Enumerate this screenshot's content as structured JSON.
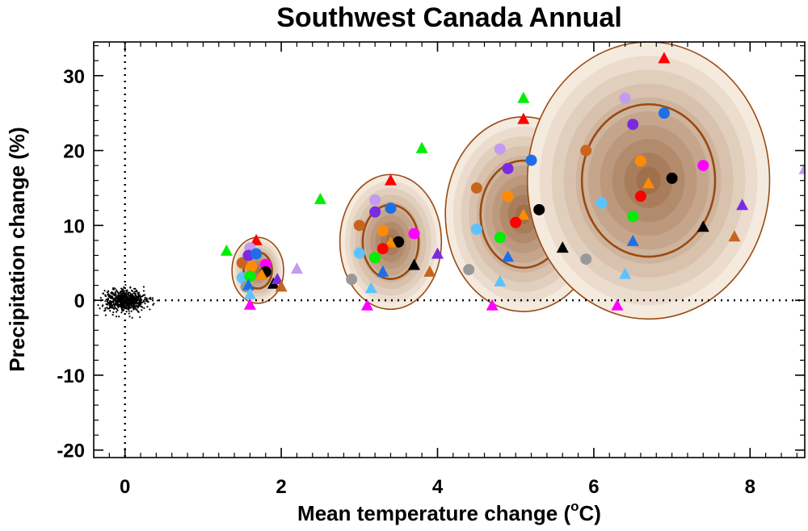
{
  "chart_data": {
    "type": "scatter",
    "title": "Southwest Canada Annual",
    "xlabel_pre": "Mean temperature change (",
    "xlabel_sup": "o",
    "xlabel_post": "C)",
    "ylabel": "Precipitation change (%)",
    "xlim": [
      -0.4,
      8.7
    ],
    "ylim": [
      -21,
      34.5
    ],
    "xticks": [
      0,
      2,
      4,
      6,
      8
    ],
    "yticks": [
      -20,
      -10,
      0,
      10,
      20,
      30
    ],
    "zero_lines": "dotted",
    "colors": {
      "brown_dark": "#9a4a12",
      "red": "#ff0000",
      "green": "#00ee00",
      "magenta": "#ff00ff",
      "orange": "#ff8c00",
      "blue": "#1e6fe6",
      "purple": "#7a2be2",
      "lavender": "#c39bef",
      "skyblue": "#5cc3ff",
      "gray": "#999999",
      "sienna": "#c8641e",
      "black": "#000000"
    },
    "control_cloud": {
      "center": [
        0,
        0
      ],
      "sd_x": 0.13,
      "sd_y": 0.7,
      "points": 700
    },
    "ellipses": [
      {
        "center": [
          1.7,
          4.0
        ],
        "rx": 0.33,
        "ry": 4.4,
        "inner_scale": 0.55
      },
      {
        "center": [
          3.4,
          7.8
        ],
        "rx": 0.65,
        "ry": 9.0,
        "inner_scale": 0.55
      },
      {
        "center": [
          5.1,
          11.5
        ],
        "rx": 1.0,
        "ry": 13.0,
        "inner_scale": 0.55
      },
      {
        "center": [
          6.7,
          16.0
        ],
        "rx": 1.55,
        "ry": 18.5,
        "inner_scale": 0.55
      }
    ],
    "markers": [
      {
        "group": 1,
        "shape": "triangle",
        "color": "green",
        "x": 1.3,
        "y": 6.6
      },
      {
        "group": 1,
        "shape": "triangle",
        "color": "red",
        "x": 1.68,
        "y": 8.0
      },
      {
        "group": 1,
        "shape": "circle",
        "color": "sienna",
        "x": 1.5,
        "y": 5.0
      },
      {
        "group": 1,
        "shape": "circle",
        "color": "lavender",
        "x": 1.6,
        "y": 7.0
      },
      {
        "group": 1,
        "shape": "circle",
        "color": "purple",
        "x": 1.58,
        "y": 6.0
      },
      {
        "group": 1,
        "shape": "circle",
        "color": "blue",
        "x": 1.68,
        "y": 6.2
      },
      {
        "group": 1,
        "shape": "circle",
        "color": "orange",
        "x": 1.62,
        "y": 4.5
      },
      {
        "group": 1,
        "shape": "circle",
        "color": "magenta",
        "x": 1.8,
        "y": 4.8
      },
      {
        "group": 1,
        "shape": "circle",
        "color": "black",
        "x": 1.8,
        "y": 3.8
      },
      {
        "group": 1,
        "shape": "circle",
        "color": "skyblue",
        "x": 1.5,
        "y": 3.0
      },
      {
        "group": 1,
        "shape": "circle",
        "color": "green",
        "x": 1.6,
        "y": 3.2
      },
      {
        "group": 1,
        "shape": "circle",
        "color": "gray",
        "x": 1.55,
        "y": 1.8
      },
      {
        "group": 1,
        "shape": "triangle",
        "color": "orange",
        "x": 1.75,
        "y": 3.4
      },
      {
        "group": 1,
        "shape": "triangle",
        "color": "blue",
        "x": 1.58,
        "y": 2.0
      },
      {
        "group": 1,
        "shape": "triangle",
        "color": "skyblue",
        "x": 1.6,
        "y": 0.8
      },
      {
        "group": 1,
        "shape": "triangle",
        "color": "magenta",
        "x": 1.6,
        "y": -0.6
      },
      {
        "group": 1,
        "shape": "triangle",
        "color": "black",
        "x": 1.9,
        "y": 2.2
      },
      {
        "group": 1,
        "shape": "triangle",
        "color": "purple",
        "x": 1.95,
        "y": 2.8
      },
      {
        "group": 1,
        "shape": "triangle",
        "color": "sienna",
        "x": 2.0,
        "y": 1.8
      },
      {
        "group": 1,
        "shape": "triangle",
        "color": "lavender",
        "x": 2.2,
        "y": 4.2
      },
      {
        "group": 2,
        "shape": "triangle",
        "color": "green",
        "x": 2.5,
        "y": 13.5
      },
      {
        "group": 2,
        "shape": "triangle",
        "color": "red",
        "x": 3.4,
        "y": 16.0
      },
      {
        "group": 2,
        "shape": "triangle",
        "color": "green",
        "x": 3.8,
        "y": 20.3
      },
      {
        "group": 2,
        "shape": "circle",
        "color": "lavender",
        "x": 3.2,
        "y": 13.4
      },
      {
        "group": 2,
        "shape": "circle",
        "color": "blue",
        "x": 3.4,
        "y": 12.3
      },
      {
        "group": 2,
        "shape": "circle",
        "color": "purple",
        "x": 3.2,
        "y": 11.8
      },
      {
        "group": 2,
        "shape": "circle",
        "color": "sienna",
        "x": 3.0,
        "y": 10.0
      },
      {
        "group": 2,
        "shape": "circle",
        "color": "orange",
        "x": 3.3,
        "y": 9.3
      },
      {
        "group": 2,
        "shape": "circle",
        "color": "magenta",
        "x": 3.7,
        "y": 8.9
      },
      {
        "group": 2,
        "shape": "circle",
        "color": "black",
        "x": 3.5,
        "y": 7.8
      },
      {
        "group": 2,
        "shape": "triangle",
        "color": "orange",
        "x": 3.4,
        "y": 7.7
      },
      {
        "group": 2,
        "shape": "circle",
        "color": "red",
        "x": 3.3,
        "y": 6.9
      },
      {
        "group": 2,
        "shape": "circle",
        "color": "skyblue",
        "x": 3.0,
        "y": 6.3
      },
      {
        "group": 2,
        "shape": "circle",
        "color": "green",
        "x": 3.2,
        "y": 5.7
      },
      {
        "group": 2,
        "shape": "triangle",
        "color": "black",
        "x": 3.7,
        "y": 4.7
      },
      {
        "group": 2,
        "shape": "triangle",
        "color": "purple",
        "x": 4.0,
        "y": 6.2
      },
      {
        "group": 2,
        "shape": "triangle",
        "color": "sienna",
        "x": 3.9,
        "y": 3.8
      },
      {
        "group": 2,
        "shape": "triangle",
        "color": "blue",
        "x": 3.3,
        "y": 3.8
      },
      {
        "group": 2,
        "shape": "circle",
        "color": "gray",
        "x": 2.9,
        "y": 2.8
      },
      {
        "group": 2,
        "shape": "triangle",
        "color": "skyblue",
        "x": 3.15,
        "y": 1.6
      },
      {
        "group": 2,
        "shape": "triangle",
        "color": "magenta",
        "x": 3.1,
        "y": -0.7
      },
      {
        "group": 3,
        "shape": "triangle",
        "color": "green",
        "x": 5.1,
        "y": 27.0
      },
      {
        "group": 3,
        "shape": "triangle",
        "color": "red",
        "x": 5.1,
        "y": 24.2
      },
      {
        "group": 3,
        "shape": "circle",
        "color": "lavender",
        "x": 4.8,
        "y": 20.2
      },
      {
        "group": 3,
        "shape": "circle",
        "color": "blue",
        "x": 5.2,
        "y": 18.7
      },
      {
        "group": 3,
        "shape": "circle",
        "color": "purple",
        "x": 4.9,
        "y": 17.6
      },
      {
        "group": 3,
        "shape": "circle",
        "color": "sienna",
        "x": 4.5,
        "y": 15.0
      },
      {
        "group": 3,
        "shape": "circle",
        "color": "orange",
        "x": 4.9,
        "y": 13.9
      },
      {
        "group": 3,
        "shape": "circle",
        "color": "black",
        "x": 5.3,
        "y": 12.1
      },
      {
        "group": 3,
        "shape": "triangle",
        "color": "orange",
        "x": 5.1,
        "y": 11.4
      },
      {
        "group": 3,
        "shape": "circle",
        "color": "red",
        "x": 5.0,
        "y": 10.4
      },
      {
        "group": 3,
        "shape": "circle",
        "color": "skyblue",
        "x": 4.5,
        "y": 9.5
      },
      {
        "group": 3,
        "shape": "circle",
        "color": "green",
        "x": 4.8,
        "y": 8.4
      },
      {
        "group": 3,
        "shape": "triangle",
        "color": "black",
        "x": 5.6,
        "y": 7.0
      },
      {
        "group": 3,
        "shape": "triangle",
        "color": "blue",
        "x": 4.9,
        "y": 5.8
      },
      {
        "group": 3,
        "shape": "circle",
        "color": "gray",
        "x": 4.4,
        "y": 4.1
      },
      {
        "group": 3,
        "shape": "triangle",
        "color": "skyblue",
        "x": 4.8,
        "y": 2.5
      },
      {
        "group": 3,
        "shape": "triangle",
        "color": "magenta",
        "x": 4.7,
        "y": -0.7
      },
      {
        "group": 4,
        "shape": "triangle",
        "color": "red",
        "x": 6.9,
        "y": 32.3
      },
      {
        "group": 4,
        "shape": "circle",
        "color": "lavender",
        "x": 6.4,
        "y": 27.0
      },
      {
        "group": 4,
        "shape": "circle",
        "color": "blue",
        "x": 6.9,
        "y": 25.0
      },
      {
        "group": 4,
        "shape": "circle",
        "color": "purple",
        "x": 6.5,
        "y": 23.5
      },
      {
        "group": 4,
        "shape": "circle",
        "color": "sienna",
        "x": 5.9,
        "y": 20.0
      },
      {
        "group": 4,
        "shape": "circle",
        "color": "orange",
        "x": 6.6,
        "y": 18.6
      },
      {
        "group": 4,
        "shape": "circle",
        "color": "magenta",
        "x": 7.4,
        "y": 18.0
      },
      {
        "group": 4,
        "shape": "circle",
        "color": "black",
        "x": 7.0,
        "y": 16.3
      },
      {
        "group": 4,
        "shape": "triangle",
        "color": "orange",
        "x": 6.7,
        "y": 15.6
      },
      {
        "group": 4,
        "shape": "circle",
        "color": "red",
        "x": 6.6,
        "y": 13.9
      },
      {
        "group": 4,
        "shape": "circle",
        "color": "skyblue",
        "x": 6.1,
        "y": 13.0
      },
      {
        "group": 4,
        "shape": "circle",
        "color": "green",
        "x": 6.5,
        "y": 11.2
      },
      {
        "group": 4,
        "shape": "triangle",
        "color": "black",
        "x": 7.4,
        "y": 9.8
      },
      {
        "group": 4,
        "shape": "triangle",
        "color": "blue",
        "x": 6.5,
        "y": 7.9
      },
      {
        "group": 4,
        "shape": "triangle",
        "color": "purple",
        "x": 7.9,
        "y": 12.7
      },
      {
        "group": 4,
        "shape": "triangle",
        "color": "sienna",
        "x": 7.8,
        "y": 8.5
      },
      {
        "group": 4,
        "shape": "circle",
        "color": "gray",
        "x": 5.9,
        "y": 5.5
      },
      {
        "group": 4,
        "shape": "triangle",
        "color": "skyblue",
        "x": 6.4,
        "y": 3.5
      },
      {
        "group": 4,
        "shape": "triangle",
        "color": "magenta",
        "x": 6.3,
        "y": -0.7
      },
      {
        "group": 4,
        "shape": "triangle",
        "color": "lavender",
        "x": 8.7,
        "y": 17.5
      }
    ]
  }
}
